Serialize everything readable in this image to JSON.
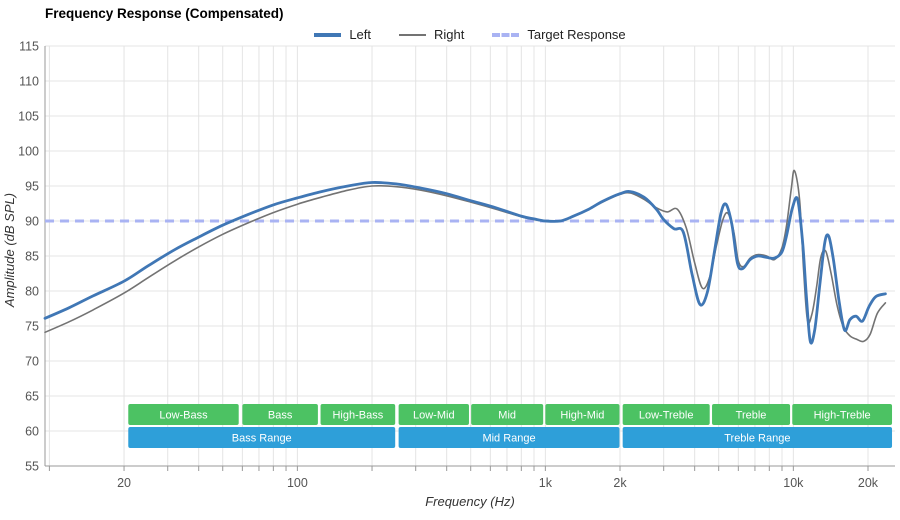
{
  "title": "Frequency Response (Compensated)",
  "legend": {
    "items": [
      {
        "label": "Left"
      },
      {
        "label": "Right"
      },
      {
        "label": "Target Response"
      }
    ]
  },
  "axes": {
    "x_label": "Frequency (Hz)",
    "y_label": "Amplitude (dB SPL)"
  },
  "colors": {
    "left_line": "#4077b5",
    "right_line": "#737373",
    "target_line": "#a9b3f3",
    "grid": "#e4e4e4",
    "axis": "#999999",
    "tick_text": "#555555",
    "band_green": "#4cc263",
    "band_blue": "#2e9fd9",
    "band_text": "#ffffff"
  },
  "chart_data": {
    "type": "line",
    "title": "Frequency Response (Compensated)",
    "xlabel": "Frequency (Hz)",
    "ylabel": "Amplitude (dB SPL)",
    "x_scale": "log",
    "x_range_hz": [
      9.6,
      25700
    ],
    "y_range_db": [
      55,
      115
    ],
    "grid": true,
    "legend_position": "top-center",
    "y_ticks": [
      55,
      60,
      65,
      70,
      75,
      80,
      85,
      90,
      95,
      100,
      105,
      110,
      115
    ],
    "x_ticks": [
      {
        "hz": 20,
        "label": "20"
      },
      {
        "hz": 100,
        "label": "100"
      },
      {
        "hz": 1000,
        "label": "1k"
      },
      {
        "hz": 2000,
        "label": "2k"
      },
      {
        "hz": 10000,
        "label": "10k"
      },
      {
        "hz": 20000,
        "label": "20k"
      }
    ],
    "target_response_db": 90,
    "series": [
      {
        "name": "Left",
        "color": "#4077b5",
        "width": 2.8,
        "points": [
          [
            9.6,
            76.1
          ],
          [
            12,
            77.6
          ],
          [
            15,
            79.3
          ],
          [
            20,
            81.4
          ],
          [
            25,
            83.6
          ],
          [
            32,
            85.9
          ],
          [
            40,
            87.7
          ],
          [
            50,
            89.4
          ],
          [
            63,
            90.9
          ],
          [
            80,
            92.3
          ],
          [
            100,
            93.3
          ],
          [
            125,
            94.2
          ],
          [
            160,
            95.0
          ],
          [
            200,
            95.5
          ],
          [
            250,
            95.3
          ],
          [
            315,
            94.7
          ],
          [
            400,
            93.9
          ],
          [
            500,
            92.9
          ],
          [
            630,
            91.9
          ],
          [
            800,
            90.7
          ],
          [
            900,
            90.3
          ],
          [
            1000,
            90.0
          ],
          [
            1150,
            90.0
          ],
          [
            1300,
            90.7
          ],
          [
            1500,
            91.7
          ],
          [
            1700,
            92.8
          ],
          [
            2000,
            93.9
          ],
          [
            2200,
            94.2
          ],
          [
            2500,
            93.4
          ],
          [
            2800,
            91.7
          ],
          [
            3000,
            90.2
          ],
          [
            3300,
            88.9
          ],
          [
            3600,
            88.4
          ],
          [
            3900,
            82.5
          ],
          [
            4200,
            78.1
          ],
          [
            4500,
            79.8
          ],
          [
            4800,
            85.5
          ],
          [
            5100,
            91.0
          ],
          [
            5350,
            92.4
          ],
          [
            5650,
            89.5
          ],
          [
            5950,
            84.0
          ],
          [
            6250,
            83.2
          ],
          [
            6700,
            84.5
          ],
          [
            7200,
            85.0
          ],
          [
            7800,
            84.8
          ],
          [
            8400,
            84.7
          ],
          [
            9000,
            85.6
          ],
          [
            9400,
            88.0
          ],
          [
            9900,
            91.8
          ],
          [
            10400,
            93.1
          ],
          [
            10900,
            87.0
          ],
          [
            11300,
            79.0
          ],
          [
            11700,
            72.8
          ],
          [
            12200,
            74.5
          ],
          [
            12800,
            81.0
          ],
          [
            13400,
            87.0
          ],
          [
            13900,
            87.8
          ],
          [
            14500,
            84.5
          ],
          [
            15300,
            78.5
          ],
          [
            16100,
            74.4
          ],
          [
            16900,
            75.9
          ],
          [
            17900,
            76.4
          ],
          [
            19000,
            75.7
          ],
          [
            20200,
            77.8
          ],
          [
            21500,
            79.2
          ],
          [
            23500,
            79.6
          ]
        ]
      },
      {
        "name": "Right",
        "color": "#737373",
        "width": 1.6,
        "points": [
          [
            9.6,
            74.1
          ],
          [
            12,
            75.6
          ],
          [
            15,
            77.3
          ],
          [
            20,
            79.7
          ],
          [
            25,
            81.9
          ],
          [
            32,
            84.3
          ],
          [
            40,
            86.3
          ],
          [
            50,
            88.1
          ],
          [
            63,
            89.7
          ],
          [
            80,
            91.2
          ],
          [
            100,
            92.4
          ],
          [
            125,
            93.4
          ],
          [
            160,
            94.4
          ],
          [
            200,
            95.0
          ],
          [
            250,
            94.9
          ],
          [
            315,
            94.4
          ],
          [
            400,
            93.6
          ],
          [
            500,
            92.7
          ],
          [
            630,
            91.7
          ],
          [
            800,
            90.6
          ],
          [
            900,
            90.2
          ],
          [
            1000,
            90.0
          ],
          [
            1150,
            90.0
          ],
          [
            1300,
            90.7
          ],
          [
            1500,
            91.7
          ],
          [
            1700,
            92.7
          ],
          [
            2000,
            93.8
          ],
          [
            2200,
            94.0
          ],
          [
            2500,
            93.1
          ],
          [
            2800,
            91.9
          ],
          [
            3100,
            91.3
          ],
          [
            3400,
            91.7
          ],
          [
            3700,
            89.0
          ],
          [
            4000,
            84.0
          ],
          [
            4300,
            80.4
          ],
          [
            4600,
            82.0
          ],
          [
            4900,
            86.5
          ],
          [
            5200,
            90.2
          ],
          [
            5450,
            91.1
          ],
          [
            5750,
            88.5
          ],
          [
            6000,
            84.3
          ],
          [
            6300,
            83.5
          ],
          [
            6700,
            84.7
          ],
          [
            7200,
            85.2
          ],
          [
            7800,
            85.0
          ],
          [
            8400,
            84.5
          ],
          [
            9000,
            86.2
          ],
          [
            9400,
            89.5
          ],
          [
            9800,
            94.5
          ],
          [
            10100,
            97.2
          ],
          [
            10600,
            93.0
          ],
          [
            11000,
            83.0
          ],
          [
            11400,
            75.8
          ],
          [
            11900,
            76.8
          ],
          [
            12400,
            80.5
          ],
          [
            12900,
            84.8
          ],
          [
            13500,
            85.7
          ],
          [
            14200,
            82.5
          ],
          [
            15000,
            78.0
          ],
          [
            15900,
            74.9
          ],
          [
            16900,
            73.6
          ],
          [
            18000,
            73.1
          ],
          [
            19200,
            72.8
          ],
          [
            20400,
            73.8
          ],
          [
            21800,
            76.8
          ],
          [
            23500,
            78.3
          ]
        ]
      }
    ],
    "frequency_bands": {
      "sub_ranges": [
        {
          "label": "Low-Bass",
          "from_hz": 20.8,
          "to_hz": 58
        },
        {
          "label": "Bass",
          "from_hz": 60,
          "to_hz": 121
        },
        {
          "label": "High-Bass",
          "from_hz": 124,
          "to_hz": 248
        },
        {
          "label": "Low-Mid",
          "from_hz": 256,
          "to_hz": 492
        },
        {
          "label": "Mid",
          "from_hz": 502,
          "to_hz": 980
        },
        {
          "label": "High-Mid",
          "from_hz": 1000,
          "to_hz": 1990
        },
        {
          "label": "Low-Treble",
          "from_hz": 2050,
          "to_hz": 4600
        },
        {
          "label": "Treble",
          "from_hz": 4700,
          "to_hz": 9700
        },
        {
          "label": "High-Treble",
          "from_hz": 9900,
          "to_hz": 25000
        }
      ],
      "main_ranges": [
        {
          "label": "Bass Range",
          "from_hz": 20.8,
          "to_hz": 248
        },
        {
          "label": "Mid Range",
          "from_hz": 256,
          "to_hz": 1990
        },
        {
          "label": "Treble Range",
          "from_hz": 2050,
          "to_hz": 25000
        }
      ]
    }
  }
}
